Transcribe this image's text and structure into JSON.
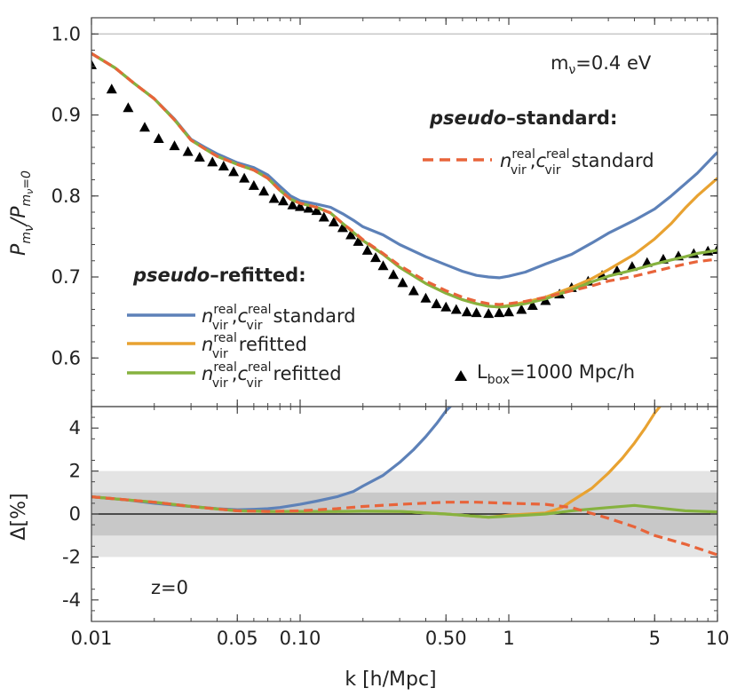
{
  "chart_data": [
    {
      "type": "line",
      "panel": "top",
      "ylabel": "P_{m_ν}/P_{m_ν=0}",
      "xscale": "log",
      "xlim": [
        0.01,
        10
      ],
      "ylim": [
        0.54,
        1.02
      ],
      "yticks": [
        "0.6",
        "0.7",
        "0.8",
        "0.9",
        "1.0"
      ],
      "annotation": "m_ν=0.4 eV",
      "legend_headers": [
        "pseudo–standard:",
        "pseudo–refitted:"
      ],
      "legend_standard": [
        {
          "label_prefix": "n_vir^real, c_vir^real",
          "label_suffix": "standard",
          "color": "#e8643a",
          "dash": true
        }
      ],
      "legend_refitted": [
        {
          "label_prefix": "n_vir^real, c_vir^real",
          "label_suffix": "standard",
          "color": "#5d81b8"
        },
        {
          "label_prefix": "n_vir^real",
          "label_suffix": "refitted",
          "color": "#e8a231"
        },
        {
          "label_prefix": "n_vir^real, c_vir^real",
          "label_suffix": "refitted",
          "color": "#86b23f"
        }
      ],
      "marker_legend": "L_box=1000 Mpc/h",
      "markers": {
        "name": "L_box=1000 Mpc/h",
        "x": [
          0.01,
          0.0125,
          0.015,
          0.018,
          0.021,
          0.025,
          0.029,
          0.033,
          0.038,
          0.043,
          0.048,
          0.054,
          0.06,
          0.067,
          0.075,
          0.083,
          0.092,
          0.1,
          0.11,
          0.12,
          0.13,
          0.145,
          0.16,
          0.175,
          0.19,
          0.21,
          0.23,
          0.25,
          0.28,
          0.31,
          0.35,
          0.4,
          0.45,
          0.5,
          0.56,
          0.63,
          0.7,
          0.8,
          0.9,
          1.0,
          1.15,
          1.3,
          1.5,
          1.75,
          2.0,
          2.4,
          2.8,
          3.3,
          3.9,
          4.6,
          5.5,
          6.5,
          7.7,
          9.0,
          10.0
        ],
        "y": [
          0.962,
          0.932,
          0.909,
          0.885,
          0.871,
          0.862,
          0.855,
          0.848,
          0.842,
          0.837,
          0.83,
          0.822,
          0.813,
          0.806,
          0.797,
          0.794,
          0.789,
          0.787,
          0.785,
          0.782,
          0.774,
          0.768,
          0.761,
          0.752,
          0.744,
          0.733,
          0.724,
          0.714,
          0.703,
          0.693,
          0.683,
          0.674,
          0.667,
          0.663,
          0.66,
          0.657,
          0.656,
          0.655,
          0.656,
          0.657,
          0.66,
          0.665,
          0.671,
          0.679,
          0.687,
          0.695,
          0.702,
          0.708,
          0.713,
          0.718,
          0.722,
          0.726,
          0.729,
          0.732,
          0.734
        ]
      },
      "series": [
        {
          "key": "blue",
          "color": "#5d81b8",
          "x": [
            0.01,
            0.013,
            0.016,
            0.02,
            0.025,
            0.03,
            0.035,
            0.04,
            0.05,
            0.06,
            0.07,
            0.08,
            0.09,
            0.1,
            0.12,
            0.14,
            0.16,
            0.18,
            0.2,
            0.25,
            0.3,
            0.4,
            0.5,
            0.6,
            0.7,
            0.8,
            0.9,
            1.0,
            1.2,
            1.5,
            2.0,
            2.5,
            3.0,
            4.0,
            5.0,
            6.0,
            7.0,
            8.0,
            10.0
          ],
          "y": [
            0.976,
            0.958,
            0.939,
            0.92,
            0.895,
            0.87,
            0.86,
            0.852,
            0.841,
            0.835,
            0.826,
            0.812,
            0.8,
            0.794,
            0.79,
            0.786,
            0.778,
            0.77,
            0.762,
            0.752,
            0.74,
            0.725,
            0.715,
            0.707,
            0.702,
            0.7,
            0.699,
            0.701,
            0.706,
            0.716,
            0.728,
            0.742,
            0.754,
            0.77,
            0.784,
            0.8,
            0.815,
            0.828,
            0.854
          ]
        },
        {
          "key": "orange",
          "color": "#e8a231",
          "x": [
            0.01,
            0.013,
            0.016,
            0.02,
            0.025,
            0.03,
            0.035,
            0.04,
            0.05,
            0.06,
            0.07,
            0.08,
            0.09,
            0.1,
            0.12,
            0.14,
            0.16,
            0.18,
            0.2,
            0.25,
            0.3,
            0.4,
            0.5,
            0.6,
            0.7,
            0.8,
            0.9,
            1.0,
            1.2,
            1.5,
            2.0,
            2.5,
            3.0,
            4.0,
            5.0,
            6.0,
            7.0,
            8.0,
            10.0
          ],
          "y": [
            0.976,
            0.958,
            0.939,
            0.92,
            0.894,
            0.869,
            0.858,
            0.849,
            0.839,
            0.832,
            0.822,
            0.807,
            0.796,
            0.791,
            0.786,
            0.779,
            0.766,
            0.755,
            0.745,
            0.728,
            0.712,
            0.692,
            0.68,
            0.672,
            0.667,
            0.664,
            0.663,
            0.665,
            0.669,
            0.675,
            0.687,
            0.698,
            0.709,
            0.728,
            0.747,
            0.766,
            0.785,
            0.8,
            0.822
          ]
        },
        {
          "key": "green",
          "color": "#86b23f",
          "x": [
            0.01,
            0.013,
            0.016,
            0.02,
            0.025,
            0.03,
            0.035,
            0.04,
            0.05,
            0.06,
            0.07,
            0.08,
            0.09,
            0.1,
            0.12,
            0.14,
            0.16,
            0.18,
            0.2,
            0.25,
            0.3,
            0.4,
            0.5,
            0.6,
            0.7,
            0.8,
            0.9,
            1.0,
            1.2,
            1.5,
            2.0,
            2.5,
            3.0,
            4.0,
            5.0,
            6.0,
            7.0,
            8.0,
            10.0
          ],
          "y": [
            0.976,
            0.958,
            0.939,
            0.92,
            0.894,
            0.869,
            0.858,
            0.849,
            0.839,
            0.832,
            0.822,
            0.807,
            0.796,
            0.791,
            0.786,
            0.779,
            0.766,
            0.755,
            0.745,
            0.728,
            0.712,
            0.692,
            0.68,
            0.672,
            0.667,
            0.664,
            0.663,
            0.664,
            0.667,
            0.673,
            0.684,
            0.694,
            0.701,
            0.709,
            0.716,
            0.721,
            0.725,
            0.729,
            0.733
          ]
        },
        {
          "key": "red",
          "color": "#e8643a",
          "dash": true,
          "x": [
            0.01,
            0.013,
            0.016,
            0.02,
            0.025,
            0.03,
            0.035,
            0.04,
            0.05,
            0.06,
            0.07,
            0.08,
            0.09,
            0.1,
            0.12,
            0.14,
            0.16,
            0.18,
            0.2,
            0.25,
            0.3,
            0.4,
            0.5,
            0.6,
            0.7,
            0.8,
            0.9,
            1.0,
            1.2,
            1.5,
            2.0,
            2.5,
            3.0,
            4.0,
            5.0,
            6.0,
            7.0,
            8.0,
            10.0
          ],
          "y": [
            0.976,
            0.958,
            0.939,
            0.92,
            0.894,
            0.869,
            0.858,
            0.849,
            0.839,
            0.832,
            0.822,
            0.807,
            0.796,
            0.791,
            0.786,
            0.779,
            0.766,
            0.756,
            0.746,
            0.729,
            0.714,
            0.695,
            0.683,
            0.675,
            0.67,
            0.667,
            0.666,
            0.667,
            0.67,
            0.675,
            0.683,
            0.689,
            0.695,
            0.701,
            0.707,
            0.712,
            0.716,
            0.719,
            0.722
          ]
        }
      ]
    },
    {
      "type": "line",
      "panel": "bottom",
      "xlabel": "k [h/Mpc]",
      "ylabel": "Δ[%]",
      "xscale": "log",
      "xlim": [
        0.01,
        10
      ],
      "ylim": [
        -5,
        5
      ],
      "xticks": [
        0.01,
        0.05,
        0.1,
        0.5,
        1,
        5,
        10
      ],
      "xtick_labels": [
        "0.01",
        "0.05",
        "0.10",
        "0.50",
        "1",
        "5",
        "10"
      ],
      "yticks": [
        "-4",
        "-2",
        "0",
        "2",
        "4"
      ],
      "bands": [
        {
          "range": [
            -2,
            2
          ],
          "color": "#e4e4e4"
        },
        {
          "range": [
            -1,
            1
          ],
          "color": "#c8c8c8"
        }
      ],
      "annotation": "z=0",
      "series": [
        {
          "key": "blue",
          "color": "#5d81b8",
          "x": [
            0.01,
            0.015,
            0.02,
            0.03,
            0.04,
            0.05,
            0.06,
            0.07,
            0.08,
            0.1,
            0.12,
            0.15,
            0.18,
            0.2,
            0.25,
            0.3,
            0.35,
            0.4,
            0.45,
            0.5,
            0.55
          ],
          "y": [
            0.8,
            0.65,
            0.5,
            0.35,
            0.25,
            0.2,
            0.22,
            0.25,
            0.3,
            0.45,
            0.6,
            0.8,
            1.05,
            1.3,
            1.8,
            2.4,
            3.0,
            3.6,
            4.2,
            4.8,
            5.2
          ]
        },
        {
          "key": "orange",
          "color": "#e8a231",
          "x": [
            0.01,
            0.02,
            0.03,
            0.05,
            0.07,
            0.1,
            0.15,
            0.2,
            0.3,
            0.5,
            0.8,
            1.0,
            1.5,
            1.8,
            2.0,
            2.5,
            3.0,
            3.5,
            4.0,
            4.5,
            5.0,
            5.5
          ],
          "y": [
            0.8,
            0.55,
            0.35,
            0.15,
            0.12,
            0.12,
            0.12,
            0.13,
            0.12,
            0.0,
            -0.15,
            -0.05,
            0.05,
            0.3,
            0.6,
            1.2,
            1.9,
            2.6,
            3.3,
            4.0,
            4.7,
            5.2
          ]
        },
        {
          "key": "green",
          "color": "#86b23f",
          "x": [
            0.01,
            0.02,
            0.03,
            0.05,
            0.07,
            0.1,
            0.15,
            0.2,
            0.3,
            0.5,
            0.8,
            1.0,
            1.5,
            2.0,
            3.0,
            4.0,
            5.0,
            7.0,
            10.0
          ],
          "y": [
            0.8,
            0.55,
            0.35,
            0.15,
            0.12,
            0.12,
            0.12,
            0.13,
            0.12,
            0.0,
            -0.15,
            -0.1,
            0.0,
            0.15,
            0.3,
            0.4,
            0.3,
            0.15,
            0.1
          ]
        },
        {
          "key": "red",
          "color": "#e8643a",
          "dash": true,
          "x": [
            0.01,
            0.02,
            0.03,
            0.05,
            0.07,
            0.1,
            0.15,
            0.2,
            0.3,
            0.5,
            0.7,
            1.0,
            1.5,
            2.0,
            3.0,
            4.0,
            5.0,
            7.0,
            10.0
          ],
          "y": [
            0.8,
            0.55,
            0.35,
            0.15,
            0.12,
            0.15,
            0.25,
            0.35,
            0.45,
            0.55,
            0.55,
            0.5,
            0.45,
            0.3,
            -0.2,
            -0.6,
            -1.0,
            -1.4,
            -1.9
          ]
        }
      ]
    }
  ]
}
